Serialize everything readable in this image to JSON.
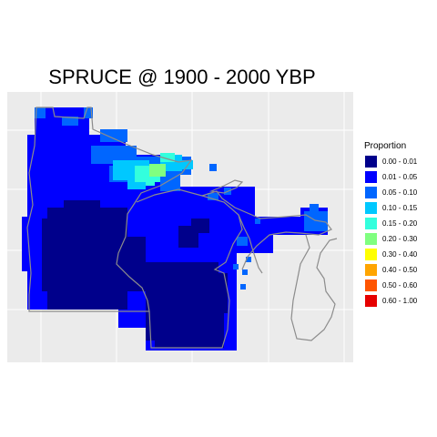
{
  "title": "SPRUCE @ 1900 - 2000 YBP",
  "legend": {
    "title": "Proportion",
    "classes": [
      {
        "label": "0.00 - 0.01",
        "color": "#00008b"
      },
      {
        "label": "0.01 - 0.05",
        "color": "#0000ff"
      },
      {
        "label": "0.05 - 0.10",
        "color": "#0066ff"
      },
      {
        "label": "0.10 - 0.15",
        "color": "#00c8ff"
      },
      {
        "label": "0.15 - 0.20",
        "color": "#33ffdd"
      },
      {
        "label": "0.20 - 0.30",
        "color": "#80ff80"
      },
      {
        "label": "0.30 - 0.40",
        "color": "#ffff00"
      },
      {
        "label": "0.40 - 0.50",
        "color": "#ffa500"
      },
      {
        "label": "0.50 - 0.60",
        "color": "#ff5500"
      },
      {
        "label": "0.60 - 1.00",
        "color": "#e60000"
      }
    ]
  },
  "map": {
    "panel_color": "#ebebeb",
    "grid_color": "#ffffff",
    "boundary_color": "#8c8c8c"
  }
}
